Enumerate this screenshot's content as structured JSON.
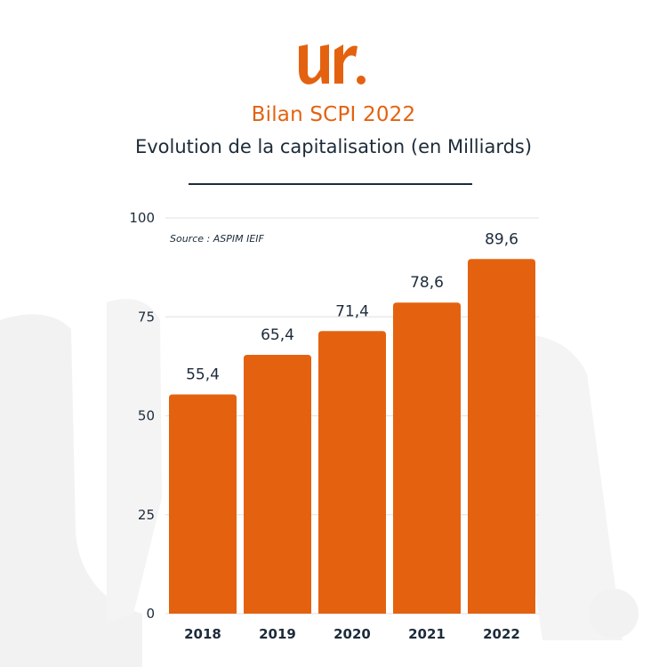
{
  "header": {
    "title": "Bilan SCPI 2022",
    "subtitle": "Evolution de la capitalisation (en Milliards)"
  },
  "colors": {
    "accent": "#e4620f",
    "text": "#1d2b3a",
    "grid": "#e6e6e6"
  },
  "chart_data": {
    "type": "bar",
    "title": "",
    "xlabel": "",
    "ylabel": "",
    "source": "Source : ASPIM IEIF",
    "categories": [
      "2018",
      "2019",
      "2020",
      "2021",
      "2022"
    ],
    "values": [
      55.4,
      65.4,
      71.4,
      78.6,
      89.6
    ],
    "value_labels": [
      "55,4",
      "65,4",
      "71,4",
      "78,6",
      "89,6"
    ],
    "ylim": [
      0,
      100
    ],
    "yticks": [
      0,
      25,
      50,
      75,
      100
    ],
    "grid": true,
    "legend": "none"
  }
}
